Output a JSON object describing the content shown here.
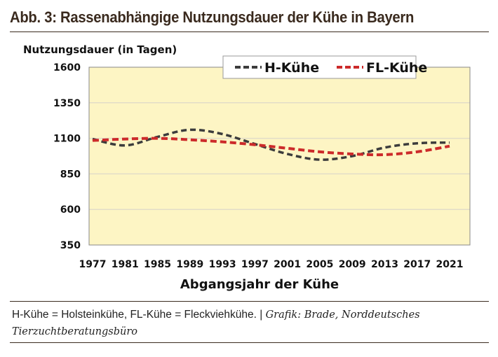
{
  "title": "Abb. 3: Rassenabhängige Nutzungsdauer der Kühe in Bayern",
  "caption": {
    "text": "H-Kühe = Holsteinkühe, FL-Kühe = Fleckviehkühe.  |  ",
    "source": "Grafik: Brade, Norddeutsches Tierzuchtberatungsbüro"
  },
  "chart_data": {
    "type": "line",
    "ylabel": "Nutzungsdauer (in Tagen)",
    "xlabel": "Abgangsjahr der Kühe",
    "ylim": [
      350,
      1600
    ],
    "yticks": [
      350,
      600,
      850,
      1100,
      1350,
      1600
    ],
    "x": [
      1977,
      1981,
      1985,
      1989,
      1993,
      1997,
      2001,
      2005,
      2009,
      2013,
      2017,
      2021
    ],
    "legend_position": "top-right",
    "grid": true,
    "series": [
      {
        "name": "H-Kühe",
        "color": "#3c3c3c",
        "values": [
          1095,
          1050,
          1110,
          1160,
          1130,
          1060,
          990,
          950,
          975,
          1035,
          1065,
          1070
        ]
      },
      {
        "name": "FL-Kühe",
        "color": "#cc2a2a",
        "values": [
          1085,
          1095,
          1100,
          1090,
          1075,
          1055,
          1030,
          1005,
          990,
          985,
          1005,
          1045
        ]
      }
    ]
  }
}
